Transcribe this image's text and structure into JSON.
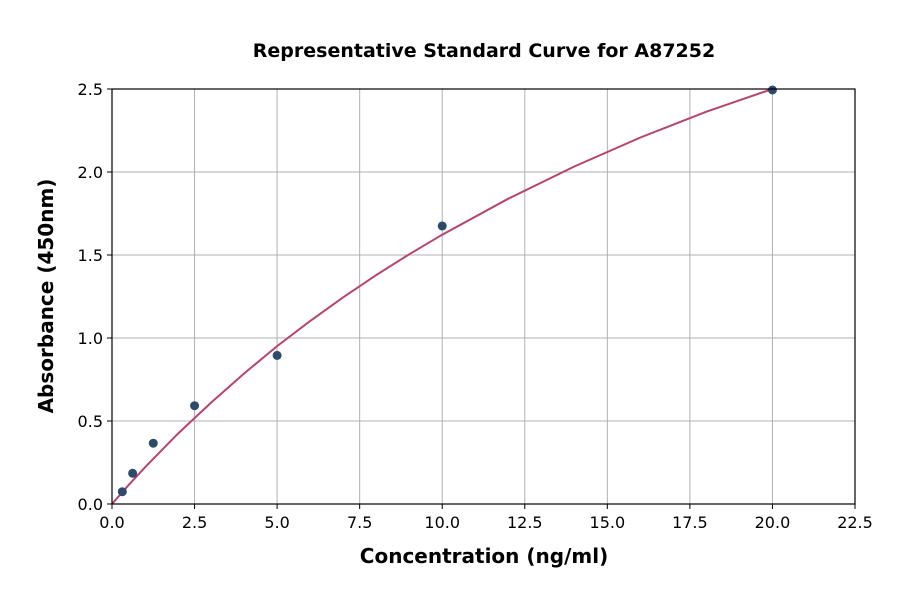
{
  "chart_data": {
    "type": "scatter",
    "title": "Representative Standard Curve for A87252",
    "xlabel": "Concentration (ng/ml)",
    "ylabel": "Absorbance (450nm)",
    "xlim": [
      0,
      22.5
    ],
    "ylim": [
      0,
      2.5
    ],
    "xticks": [
      "0.0",
      "2.5",
      "5.0",
      "7.5",
      "10.0",
      "12.5",
      "15.0",
      "17.5",
      "20.0",
      "22.5"
    ],
    "yticks": [
      "0.0",
      "0.5",
      "1.0",
      "1.5",
      "2.0",
      "2.5"
    ],
    "grid": true,
    "points": {
      "x": [
        0.3125,
        0.625,
        1.25,
        2.5,
        5,
        10,
        20
      ],
      "y": [
        0.074,
        0.185,
        0.366,
        0.592,
        0.895,
        1.675,
        2.494
      ]
    },
    "fit_curve": {
      "x": [
        0,
        0.5,
        1,
        2,
        3,
        4,
        5,
        6,
        7,
        8,
        9,
        10,
        12,
        14,
        16,
        18,
        20
      ],
      "y": [
        0,
        0.113,
        0.221,
        0.424,
        0.611,
        0.786,
        0.951,
        1.102,
        1.245,
        1.379,
        1.504,
        1.622,
        1.839,
        2.033,
        2.208,
        2.363,
        2.5
      ]
    },
    "colors": {
      "points": "#2d4a6b",
      "curve": "#b5446e",
      "grid": "#b0b0b0"
    }
  }
}
